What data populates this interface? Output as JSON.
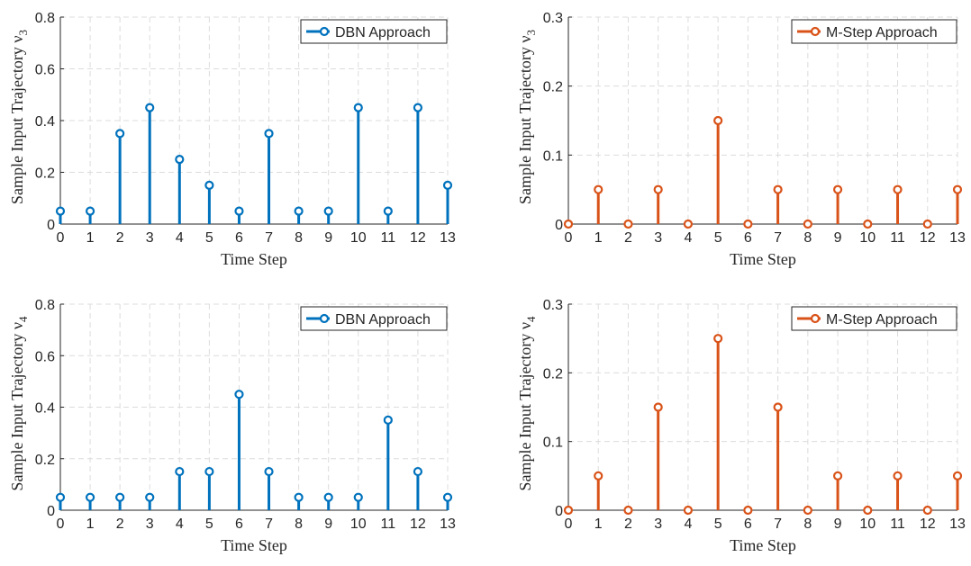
{
  "chart_data": [
    {
      "type": "stem",
      "xlabel": "Time Step",
      "ylabel": "Sample Input Trajectory ν",
      "ylabel_sub": "3",
      "ylim": [
        0,
        0.8
      ],
      "yticks": [
        "0",
        "0.2",
        "0.4",
        "0.6",
        "0.8"
      ],
      "xlim": [
        0,
        13
      ],
      "xticks": [
        "0",
        "1",
        "2",
        "3",
        "4",
        "5",
        "6",
        "7",
        "8",
        "9",
        "10",
        "11",
        "12",
        "13"
      ],
      "grid": true,
      "legend_position": "top-right",
      "series": [
        {
          "name": "DBN Approach",
          "color": "#0072BD",
          "x": [
            0,
            1,
            2,
            3,
            4,
            5,
            6,
            7,
            8,
            9,
            10,
            11,
            12,
            13
          ],
          "values": [
            0.05,
            0.05,
            0.35,
            0.45,
            0.25,
            0.15,
            0.05,
            0.35,
            0.05,
            0.05,
            0.45,
            0.05,
            0.45,
            0.15
          ]
        }
      ]
    },
    {
      "type": "stem",
      "xlabel": "Time Step",
      "ylabel": "Sample Input Trajectory ν",
      "ylabel_sub": "3",
      "ylim": [
        0,
        0.3
      ],
      "yticks": [
        "0",
        "0.1",
        "0.2",
        "0.3"
      ],
      "xlim": [
        0,
        13
      ],
      "xticks": [
        "0",
        "1",
        "2",
        "3",
        "4",
        "5",
        "6",
        "7",
        "8",
        "9",
        "10",
        "11",
        "12",
        "13"
      ],
      "grid": true,
      "legend_position": "top-right",
      "series": [
        {
          "name": "M-Step Approach",
          "color": "#D95319",
          "x": [
            0,
            1,
            2,
            3,
            4,
            5,
            6,
            7,
            8,
            9,
            10,
            11,
            12,
            13
          ],
          "values": [
            0,
            0.05,
            0,
            0.05,
            0,
            0.15,
            0,
            0.05,
            0,
            0.05,
            0,
            0.05,
            0,
            0.05
          ]
        }
      ]
    },
    {
      "type": "stem",
      "xlabel": "Time Step",
      "ylabel": "Sample Input Trajectory ν",
      "ylabel_sub": "4",
      "ylim": [
        0,
        0.8
      ],
      "yticks": [
        "0",
        "0.2",
        "0.4",
        "0.6",
        "0.8"
      ],
      "xlim": [
        0,
        13
      ],
      "xticks": [
        "0",
        "1",
        "2",
        "3",
        "4",
        "5",
        "6",
        "7",
        "8",
        "9",
        "10",
        "11",
        "12",
        "13"
      ],
      "grid": true,
      "legend_position": "top-right",
      "series": [
        {
          "name": "DBN Approach",
          "color": "#0072BD",
          "x": [
            0,
            1,
            2,
            3,
            4,
            5,
            6,
            7,
            8,
            9,
            10,
            11,
            12,
            13
          ],
          "values": [
            0.05,
            0.05,
            0.05,
            0.05,
            0.15,
            0.15,
            0.45,
            0.15,
            0.05,
            0.05,
            0.05,
            0.35,
            0.15,
            0.05
          ]
        }
      ]
    },
    {
      "type": "stem",
      "xlabel": "Time Step",
      "ylabel": "Sample Input Trajectory ν",
      "ylabel_sub": "4",
      "ylim": [
        0,
        0.3
      ],
      "yticks": [
        "0",
        "0.1",
        "0.2",
        "0.3"
      ],
      "xlim": [
        0,
        13
      ],
      "xticks": [
        "0",
        "1",
        "2",
        "3",
        "4",
        "5",
        "6",
        "7",
        "8",
        "9",
        "10",
        "11",
        "12",
        "13"
      ],
      "grid": true,
      "legend_position": "top-right",
      "series": [
        {
          "name": "M-Step Approach",
          "color": "#D95319",
          "x": [
            0,
            1,
            2,
            3,
            4,
            5,
            6,
            7,
            8,
            9,
            10,
            11,
            12,
            13
          ],
          "values": [
            0,
            0.05,
            0,
            0.15,
            0,
            0.25,
            0,
            0.15,
            0,
            0.05,
            0,
            0.05,
            0,
            0.05
          ]
        }
      ]
    }
  ]
}
